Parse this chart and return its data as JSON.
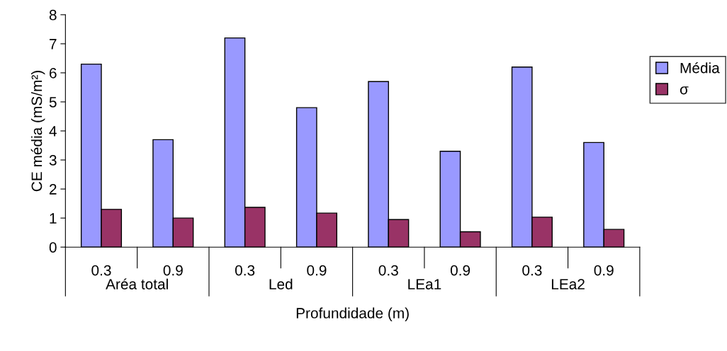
{
  "chart_data": {
    "type": "bar",
    "xlabel": "Profundidade (m)",
    "ylabel": "CE média (mS/m²)",
    "categories": [
      "0.3",
      "0.9",
      "0.3",
      "0.9",
      "0.3",
      "0.9",
      "0.3",
      "0.9"
    ],
    "annotations": [
      "Aréa total",
      "Led",
      "LEa1",
      "LEa2"
    ],
    "series": [
      {
        "name": "Média",
        "color": "#9999ff",
        "values": [
          6.3,
          3.7,
          7.2,
          4.8,
          5.7,
          3.3,
          6.2,
          3.6
        ]
      },
      {
        "name": "σ",
        "color": "#993366",
        "values": [
          1.3,
          1.0,
          1.37,
          1.17,
          0.95,
          0.53,
          1.03,
          0.61
        ]
      }
    ],
    "ylim": [
      0,
      8
    ],
    "yticks": [
      0,
      1,
      2,
      3,
      4,
      5,
      6,
      7,
      8
    ],
    "grid": false,
    "legend": "right"
  }
}
